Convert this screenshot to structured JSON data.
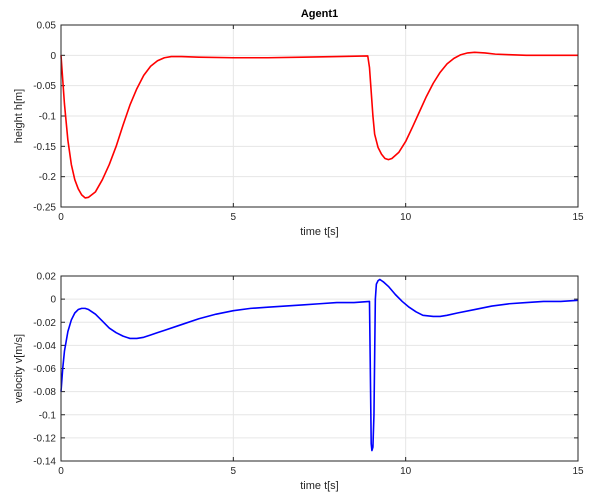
{
  "chart_data": [
    {
      "type": "line",
      "title": "Agent1",
      "xlabel": "time t[s]",
      "ylabel": "height h[m]",
      "xlim": [
        0,
        15
      ],
      "ylim": [
        -0.25,
        0.05
      ],
      "grid": true,
      "xticks": [
        "0",
        "5",
        "10",
        "15"
      ],
      "yticks": [
        "0.05",
        "0",
        "-0.05",
        "-0.1",
        "-0.15",
        "-0.2",
        "-0.25"
      ],
      "series": [
        {
          "color": "#ff0000",
          "x": [
            0,
            0.05,
            0.1,
            0.2,
            0.3,
            0.4,
            0.5,
            0.6,
            0.7,
            0.8,
            1.0,
            1.2,
            1.4,
            1.6,
            1.8,
            2.0,
            2.2,
            2.4,
            2.6,
            2.8,
            3.0,
            3.2,
            3.5,
            4.0,
            5.0,
            6.0,
            7.0,
            8.0,
            8.9,
            8.95,
            9.0,
            9.05,
            9.1,
            9.2,
            9.3,
            9.4,
            9.5,
            9.6,
            9.8,
            10.0,
            10.2,
            10.4,
            10.6,
            10.8,
            11.0,
            11.2,
            11.4,
            11.6,
            11.8,
            12.0,
            12.3,
            12.6,
            13.0,
            13.5,
            14.0,
            15.0
          ],
          "values": [
            0,
            -0.04,
            -0.08,
            -0.14,
            -0.18,
            -0.205,
            -0.22,
            -0.23,
            -0.235,
            -0.234,
            -0.225,
            -0.205,
            -0.18,
            -0.15,
            -0.115,
            -0.082,
            -0.055,
            -0.033,
            -0.018,
            -0.009,
            -0.004,
            -0.002,
            -0.002,
            -0.003,
            -0.004,
            -0.004,
            -0.003,
            -0.002,
            -0.001,
            -0.02,
            -0.06,
            -0.1,
            -0.13,
            -0.152,
            -0.163,
            -0.17,
            -0.172,
            -0.17,
            -0.16,
            -0.142,
            -0.118,
            -0.093,
            -0.068,
            -0.046,
            -0.028,
            -0.014,
            -0.005,
            0.001,
            0.004,
            0.005,
            0.004,
            0.002,
            0.001,
            0,
            0,
            0
          ]
        }
      ]
    },
    {
      "type": "line",
      "title": "",
      "xlabel": "time t[s]",
      "ylabel": "velocity v[m/s]",
      "xlim": [
        0,
        15
      ],
      "ylim": [
        -0.14,
        0.02
      ],
      "grid": true,
      "xticks": [
        "0",
        "5",
        "10",
        "15"
      ],
      "yticks": [
        "0.02",
        "0",
        "-0.02",
        "-0.04",
        "-0.06",
        "-0.08",
        "-0.1",
        "-0.12",
        "-0.14"
      ],
      "series": [
        {
          "color": "#0000ff",
          "x": [
            0,
            0.05,
            0.1,
            0.2,
            0.3,
            0.4,
            0.5,
            0.6,
            0.7,
            0.8,
            1.0,
            1.2,
            1.4,
            1.6,
            1.8,
            2.0,
            2.2,
            2.4,
            2.6,
            2.8,
            3.0,
            3.5,
            4.0,
            4.5,
            5.0,
            5.5,
            6.0,
            6.5,
            7.0,
            7.5,
            8.0,
            8.5,
            8.95,
            8.97,
            9.0,
            9.02,
            9.05,
            9.08,
            9.1,
            9.12,
            9.15,
            9.2,
            9.25,
            9.3,
            9.35,
            9.5,
            9.7,
            9.9,
            10.1,
            10.3,
            10.5,
            10.8,
            11.0,
            11.2,
            11.5,
            12.0,
            12.5,
            13.0,
            13.5,
            14.0,
            14.5,
            15.0
          ],
          "values": [
            -0.08,
            -0.06,
            -0.045,
            -0.028,
            -0.018,
            -0.012,
            -0.009,
            -0.008,
            -0.008,
            -0.009,
            -0.013,
            -0.019,
            -0.025,
            -0.029,
            -0.032,
            -0.034,
            -0.034,
            -0.033,
            -0.031,
            -0.029,
            -0.027,
            -0.022,
            -0.017,
            -0.013,
            -0.01,
            -0.008,
            -0.007,
            -0.006,
            -0.005,
            -0.004,
            -0.003,
            -0.003,
            -0.002,
            -0.05,
            -0.125,
            -0.131,
            -0.128,
            -0.1,
            -0.05,
            0.0,
            0.013,
            0.016,
            0.017,
            0.016,
            0.015,
            0.011,
            0.004,
            -0.002,
            -0.007,
            -0.011,
            -0.014,
            -0.015,
            -0.015,
            -0.014,
            -0.012,
            -0.009,
            -0.006,
            -0.004,
            -0.003,
            -0.002,
            -0.002,
            -0.001
          ]
        }
      ]
    }
  ]
}
